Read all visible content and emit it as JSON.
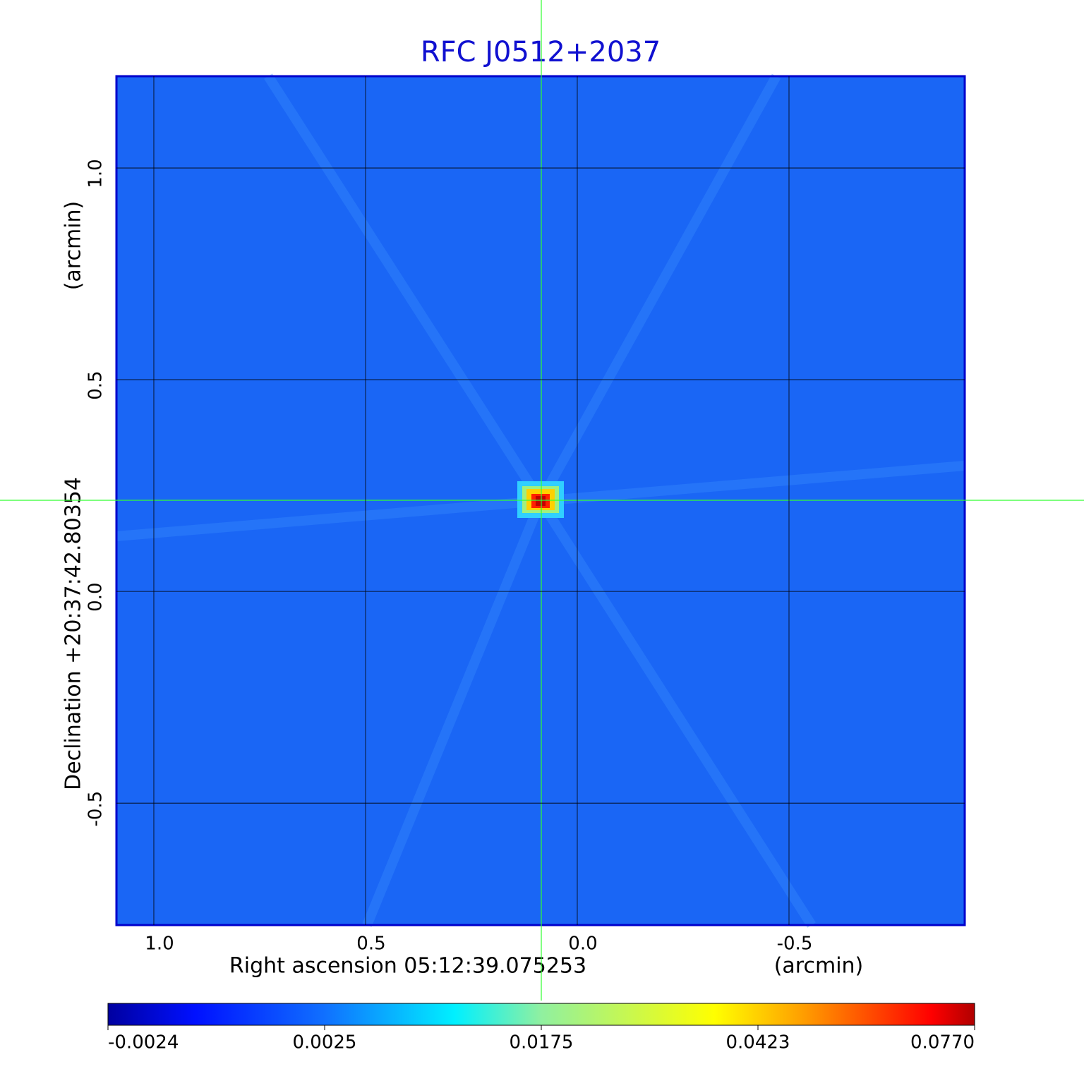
{
  "chart_data": {
    "type": "image",
    "title": "RFC J0512+2037",
    "x_label": "Right ascension  05:12:39.075253",
    "x_unit": "(arcmin)",
    "y_label": "Declination  +20:37:42.80354",
    "y_unit": "(arcmin)",
    "xlim": [
      1.0883,
      -0.915
    ],
    "ylim": [
      -0.788,
      1.2167
    ],
    "xticks": [
      {
        "value": 1,
        "label": "1.0"
      },
      {
        "value": 0.5,
        "label": "0.5"
      },
      {
        "value": 0,
        "label": "0.0"
      },
      {
        "value": -0.5,
        "label": "-0.5"
      }
    ],
    "yticks": [
      {
        "value": 1,
        "label": "1.0"
      },
      {
        "value": 0.5,
        "label": "0.5"
      },
      {
        "value": 0,
        "label": "0.0"
      },
      {
        "value": -0.5,
        "label": "-0.5"
      }
    ],
    "grid": true,
    "colorbar_ticks": [
      -0.0024,
      0.0025,
      0.0175,
      0.0423,
      {
        "value": 0.077,
        "label": "0.0770"
      }
    ]
  }
}
